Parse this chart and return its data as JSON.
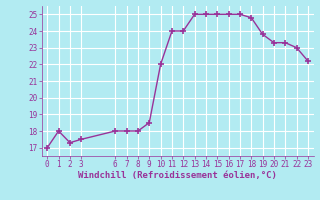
{
  "x": [
    0,
    1,
    2,
    3,
    6,
    7,
    8,
    9,
    10,
    11,
    12,
    13,
    14,
    15,
    16,
    17,
    18,
    19,
    20,
    21,
    22,
    23
  ],
  "y": [
    17.0,
    18.0,
    17.3,
    17.5,
    18.0,
    18.0,
    18.0,
    18.5,
    22.0,
    24.0,
    24.0,
    25.0,
    25.0,
    25.0,
    25.0,
    25.0,
    24.8,
    23.8,
    23.3,
    23.3,
    23.0,
    22.2
  ],
  "xlim": [
    -0.5,
    23.5
  ],
  "ylim": [
    16.5,
    25.5
  ],
  "yticks": [
    17,
    18,
    19,
    20,
    21,
    22,
    23,
    24,
    25
  ],
  "xticks": [
    0,
    1,
    2,
    3,
    6,
    7,
    8,
    9,
    10,
    11,
    12,
    13,
    14,
    15,
    16,
    17,
    18,
    19,
    20,
    21,
    22,
    23
  ],
  "xlabel": "Windchill (Refroidissement éolien,°C)",
  "line_color": "#993399",
  "marker": "+",
  "bg_color": "#b2ebf2",
  "grid_color": "#aadddd",
  "xlabel_fontsize": 6.5,
  "tick_fontsize": 5.5,
  "line_width": 1.0,
  "marker_size": 4,
  "marker_edge_width": 1.2
}
